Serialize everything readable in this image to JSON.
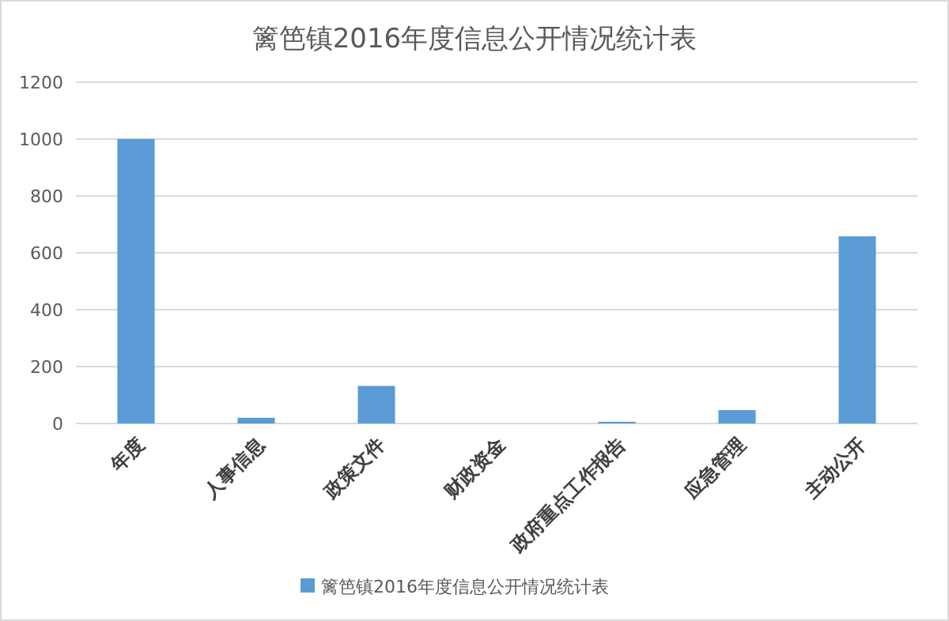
{
  "chart_data": {
    "type": "bar",
    "title": "篱笆镇2016年度信息公开情况统计表",
    "categories": [
      "年度",
      "人事信息",
      "政策文件",
      "财政资金",
      "政府重点工作报告",
      "应急管理",
      "主动公开"
    ],
    "series": [
      {
        "name": "篱笆镇2016年度信息公开情况统计表",
        "color": "#5b9bd5",
        "values": [
          1000,
          20,
          132,
          0,
          6,
          47,
          658
        ]
      }
    ],
    "ylim": [
      0,
      1200
    ],
    "yticks": [
      0,
      200,
      400,
      600,
      800,
      1000,
      1200
    ],
    "grid": "y",
    "legend": "bottom"
  }
}
